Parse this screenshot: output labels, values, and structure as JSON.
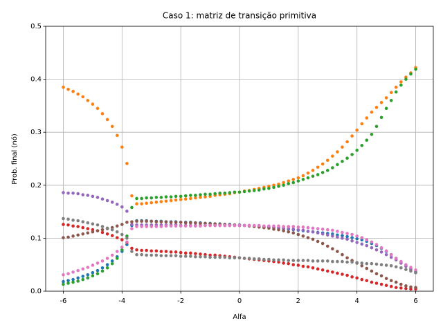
{
  "chart_data": {
    "type": "scatter",
    "title": "Caso 1: matriz de transição primitiva",
    "x_label": "Alfa",
    "y_label": "Prob. final (nó)",
    "x": [
      -6,
      -5.833,
      -5.667,
      -5.5,
      -5.333,
      -5.167,
      -5,
      -4.833,
      -4.667,
      -4.5,
      -4.333,
      -4.167,
      -4,
      -3.833,
      -3.667,
      -3.5,
      -3.333,
      -3.167,
      -3,
      -2.833,
      -2.667,
      -2.5,
      -2.333,
      -2.167,
      -2,
      -1.833,
      -1.667,
      -1.5,
      -1.333,
      -1.167,
      -1,
      -0.833,
      -0.667,
      -0.5,
      -0.333,
      -0.167,
      0,
      0.167,
      0.333,
      0.5,
      0.667,
      0.833,
      1,
      1.167,
      1.333,
      1.5,
      1.667,
      1.833,
      2,
      2.167,
      2.333,
      2.5,
      2.667,
      2.833,
      3,
      3.167,
      3.333,
      3.5,
      3.667,
      3.833,
      4,
      4.167,
      4.333,
      4.5,
      4.667,
      4.833,
      5,
      5.167,
      5.333,
      5.5,
      5.667,
      5.833,
      6
    ],
    "series": [
      {
        "color": "#1f77b4",
        "values": [
          0.018,
          0.02,
          0.022,
          0.025,
          0.028,
          0.031,
          0.035,
          0.039,
          0.044,
          0.05,
          0.057,
          0.065,
          0.075,
          0.088,
          0.124,
          0.133,
          0.133,
          0.133,
          0.132,
          0.132,
          0.132,
          0.131,
          0.131,
          0.131,
          0.13,
          0.13,
          0.13,
          0.129,
          0.129,
          0.128,
          0.128,
          0.127,
          0.127,
          0.126,
          0.126,
          0.125,
          0.125,
          0.124,
          0.124,
          0.123,
          0.122,
          0.122,
          0.121,
          0.12,
          0.119,
          0.118,
          0.117,
          0.116,
          0.115,
          0.114,
          0.113,
          0.112,
          0.111,
          0.11,
          0.109,
          0.108,
          0.106,
          0.105,
          0.103,
          0.101,
          0.099,
          0.097,
          0.094,
          0.09,
          0.086,
          0.081,
          0.075,
          0.069,
          0.062,
          0.055,
          0.048,
          0.041,
          0.035
        ]
      },
      {
        "color": "#ff7f0e",
        "values": [
          0.385,
          0.381,
          0.377,
          0.372,
          0.367,
          0.36,
          0.353,
          0.345,
          0.335,
          0.324,
          0.311,
          0.294,
          0.272,
          0.241,
          0.18,
          0.165,
          0.165,
          0.166,
          0.167,
          0.168,
          0.169,
          0.17,
          0.171,
          0.172,
          0.173,
          0.174,
          0.175,
          0.176,
          0.177,
          0.178,
          0.179,
          0.181,
          0.182,
          0.183,
          0.184,
          0.186,
          0.187,
          0.189,
          0.19,
          0.192,
          0.194,
          0.196,
          0.198,
          0.2,
          0.202,
          0.205,
          0.208,
          0.211,
          0.214,
          0.218,
          0.223,
          0.228,
          0.234,
          0.24,
          0.247,
          0.255,
          0.263,
          0.272,
          0.282,
          0.293,
          0.304,
          0.316,
          0.327,
          0.338,
          0.347,
          0.356,
          0.365,
          0.375,
          0.385,
          0.395,
          0.404,
          0.412,
          0.422
        ]
      },
      {
        "color": "#2ca02c",
        "values": [
          0.013,
          0.015,
          0.017,
          0.019,
          0.022,
          0.025,
          0.029,
          0.033,
          0.038,
          0.044,
          0.052,
          0.062,
          0.078,
          0.104,
          0.158,
          0.175,
          0.175,
          0.176,
          0.176,
          0.177,
          0.177,
          0.178,
          0.178,
          0.179,
          0.179,
          0.18,
          0.181,
          0.181,
          0.182,
          0.183,
          0.183,
          0.184,
          0.185,
          0.185,
          0.186,
          0.187,
          0.187,
          0.188,
          0.189,
          0.19,
          0.191,
          0.193,
          0.194,
          0.196,
          0.198,
          0.2,
          0.203,
          0.205,
          0.208,
          0.211,
          0.214,
          0.217,
          0.22,
          0.224,
          0.228,
          0.233,
          0.239,
          0.245,
          0.251,
          0.258,
          0.266,
          0.275,
          0.285,
          0.296,
          0.311,
          0.328,
          0.345,
          0.36,
          0.376,
          0.389,
          0.4,
          0.41,
          0.419
        ]
      },
      {
        "color": "#d62728",
        "values": [
          0.126,
          0.125,
          0.123,
          0.122,
          0.12,
          0.118,
          0.116,
          0.114,
          0.111,
          0.108,
          0.105,
          0.101,
          0.097,
          0.092,
          0.081,
          0.078,
          0.077,
          0.077,
          0.076,
          0.076,
          0.075,
          0.075,
          0.074,
          0.074,
          0.073,
          0.072,
          0.072,
          0.071,
          0.07,
          0.069,
          0.068,
          0.068,
          0.067,
          0.066,
          0.065,
          0.064,
          0.063,
          0.062,
          0.061,
          0.06,
          0.059,
          0.058,
          0.057,
          0.056,
          0.055,
          0.053,
          0.052,
          0.05,
          0.049,
          0.047,
          0.046,
          0.044,
          0.042,
          0.04,
          0.038,
          0.036,
          0.034,
          0.032,
          0.03,
          0.027,
          0.025,
          0.022,
          0.02,
          0.017,
          0.015,
          0.013,
          0.011,
          0.009,
          0.007,
          0.006,
          0.005,
          0.004,
          0.004
        ]
      },
      {
        "color": "#9467bd",
        "values": [
          0.186,
          0.185,
          0.185,
          0.184,
          0.182,
          0.181,
          0.179,
          0.177,
          0.174,
          0.171,
          0.168,
          0.164,
          0.159,
          0.151,
          0.126,
          0.125,
          0.125,
          0.125,
          0.125,
          0.125,
          0.125,
          0.125,
          0.125,
          0.125,
          0.124,
          0.124,
          0.124,
          0.124,
          0.124,
          0.124,
          0.124,
          0.124,
          0.124,
          0.124,
          0.124,
          0.124,
          0.124,
          0.124,
          0.124,
          0.123,
          0.123,
          0.122,
          0.122,
          0.121,
          0.12,
          0.119,
          0.118,
          0.117,
          0.116,
          0.115,
          0.113,
          0.112,
          0.11,
          0.108,
          0.106,
          0.104,
          0.102,
          0.1,
          0.098,
          0.095,
          0.092,
          0.089,
          0.086,
          0.082,
          0.078,
          0.074,
          0.069,
          0.064,
          0.059,
          0.053,
          0.047,
          0.042,
          0.037
        ]
      },
      {
        "color": "#8c564b",
        "values": [
          0.101,
          0.102,
          0.104,
          0.106,
          0.108,
          0.11,
          0.112,
          0.114,
          0.116,
          0.118,
          0.12,
          0.123,
          0.126,
          0.13,
          0.131,
          0.132,
          0.132,
          0.132,
          0.132,
          0.131,
          0.131,
          0.131,
          0.13,
          0.13,
          0.13,
          0.129,
          0.129,
          0.129,
          0.128,
          0.128,
          0.127,
          0.127,
          0.126,
          0.126,
          0.125,
          0.125,
          0.124,
          0.124,
          0.123,
          0.122,
          0.121,
          0.12,
          0.119,
          0.117,
          0.116,
          0.114,
          0.112,
          0.11,
          0.107,
          0.104,
          0.101,
          0.098,
          0.094,
          0.09,
          0.085,
          0.08,
          0.075,
          0.069,
          0.063,
          0.058,
          0.053,
          0.048,
          0.043,
          0.038,
          0.033,
          0.029,
          0.024,
          0.02,
          0.017,
          0.013,
          0.01,
          0.008,
          0.007
        ]
      },
      {
        "color": "#e377c2",
        "values": [
          0.031,
          0.033,
          0.036,
          0.039,
          0.042,
          0.045,
          0.049,
          0.053,
          0.057,
          0.062,
          0.068,
          0.075,
          0.083,
          0.093,
          0.118,
          0.122,
          0.122,
          0.122,
          0.122,
          0.122,
          0.122,
          0.123,
          0.123,
          0.123,
          0.123,
          0.123,
          0.123,
          0.123,
          0.123,
          0.124,
          0.124,
          0.124,
          0.124,
          0.124,
          0.124,
          0.124,
          0.124,
          0.124,
          0.124,
          0.124,
          0.124,
          0.123,
          0.123,
          0.123,
          0.123,
          0.122,
          0.122,
          0.122,
          0.121,
          0.121,
          0.12,
          0.119,
          0.118,
          0.117,
          0.116,
          0.115,
          0.113,
          0.111,
          0.109,
          0.107,
          0.104,
          0.101,
          0.097,
          0.093,
          0.088,
          0.082,
          0.076,
          0.069,
          0.062,
          0.056,
          0.05,
          0.045,
          0.04
        ]
      },
      {
        "color": "#7f7f7f",
        "values": [
          0.137,
          0.136,
          0.134,
          0.133,
          0.131,
          0.129,
          0.127,
          0.125,
          0.122,
          0.119,
          0.116,
          0.112,
          0.107,
          0.1,
          0.075,
          0.069,
          0.069,
          0.068,
          0.068,
          0.068,
          0.067,
          0.067,
          0.067,
          0.067,
          0.066,
          0.066,
          0.066,
          0.065,
          0.065,
          0.065,
          0.064,
          0.064,
          0.064,
          0.064,
          0.063,
          0.063,
          0.063,
          0.062,
          0.062,
          0.061,
          0.061,
          0.06,
          0.06,
          0.059,
          0.059,
          0.059,
          0.058,
          0.058,
          0.058,
          0.058,
          0.058,
          0.057,
          0.057,
          0.057,
          0.057,
          0.056,
          0.056,
          0.056,
          0.055,
          0.055,
          0.054,
          0.053,
          0.052,
          0.052,
          0.051,
          0.05,
          0.049,
          0.048,
          0.046,
          0.044,
          0.041,
          0.038,
          0.035
        ]
      }
    ],
    "xlim": [
      -6.6,
      6.6
    ],
    "ylim": [
      0,
      0.5
    ],
    "xticks": [
      -6,
      -4,
      -2,
      0,
      2,
      4,
      6
    ],
    "yticks": [
      {
        "value": 0,
        "label": "0.0"
      },
      0.1,
      0.2,
      0.3,
      0.4,
      0.5
    ],
    "grid": true
  }
}
